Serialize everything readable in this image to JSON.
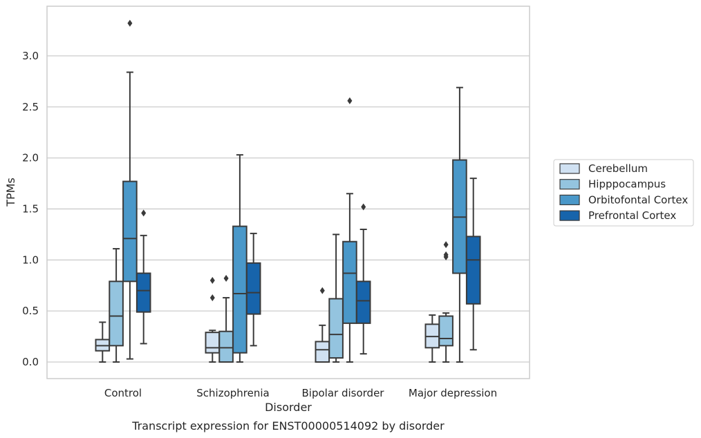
{
  "chart_data": {
    "type": "box",
    "title": "",
    "caption": "Transcript expression for ENST00000514092 by disorder",
    "xlabel": "Disorder",
    "ylabel": "TPMs",
    "ylim": [
      -0.16,
      3.48
    ],
    "yticks": [
      "0.0",
      "0.5",
      "1.0",
      "1.5",
      "2.0",
      "2.5",
      "3.0"
    ],
    "grid": "horizontal",
    "legend_position": "right",
    "categories": [
      "Control",
      "Schizophrenia",
      "Bipolar disorder",
      "Major depression"
    ],
    "series": [
      {
        "name": "Cerebellum",
        "color": "#d0e1f2",
        "boxes": [
          {
            "min": 0.0,
            "q1": 0.11,
            "median": 0.16,
            "q3": 0.22,
            "max": 0.39,
            "outliers": []
          },
          {
            "min": 0.0,
            "q1": 0.09,
            "median": 0.14,
            "q3": 0.29,
            "max": 0.31,
            "outliers": [
              0.63,
              0.8
            ]
          },
          {
            "min": 0.0,
            "q1": 0.0,
            "median": 0.12,
            "q3": 0.2,
            "max": 0.36,
            "outliers": [
              0.7
            ]
          },
          {
            "min": 0.0,
            "q1": 0.14,
            "median": 0.25,
            "q3": 0.37,
            "max": 0.46,
            "outliers": []
          }
        ]
      },
      {
        "name": "Hipppocampus",
        "color": "#94c4df",
        "boxes": [
          {
            "min": 0.0,
            "q1": 0.16,
            "median": 0.45,
            "q3": 0.79,
            "max": 1.11,
            "outliers": []
          },
          {
            "min": 0.0,
            "q1": 0.0,
            "median": 0.14,
            "q3": 0.3,
            "max": 0.63,
            "outliers": [
              0.82
            ]
          },
          {
            "min": 0.0,
            "q1": 0.04,
            "median": 0.27,
            "q3": 0.62,
            "max": 1.25,
            "outliers": []
          },
          {
            "min": 0.0,
            "q1": 0.16,
            "median": 0.23,
            "q3": 0.45,
            "max": 0.48,
            "outliers": [
              1.03,
              1.05,
              1.15
            ]
          }
        ]
      },
      {
        "name": "Orbitofontal Cortex",
        "color": "#4a98c9",
        "boxes": [
          {
            "min": 0.03,
            "q1": 0.79,
            "median": 1.21,
            "q3": 1.77,
            "max": 2.84,
            "outliers": [
              3.32
            ]
          },
          {
            "min": 0.0,
            "q1": 0.09,
            "median": 0.67,
            "q3": 1.33,
            "max": 2.03,
            "outliers": []
          },
          {
            "min": 0.0,
            "q1": 0.38,
            "median": 0.87,
            "q3": 1.18,
            "max": 1.65,
            "outliers": [
              2.56
            ]
          },
          {
            "min": 0.0,
            "q1": 0.87,
            "median": 1.42,
            "q3": 1.98,
            "max": 2.69,
            "outliers": []
          }
        ]
      },
      {
        "name": "Prefrontal Cortex",
        "color": "#1764ab",
        "boxes": [
          {
            "min": 0.18,
            "q1": 0.49,
            "median": 0.7,
            "q3": 0.87,
            "max": 1.24,
            "outliers": [
              1.46
            ]
          },
          {
            "min": 0.16,
            "q1": 0.47,
            "median": 0.68,
            "q3": 0.97,
            "max": 1.26,
            "outliers": []
          },
          {
            "min": 0.08,
            "q1": 0.38,
            "median": 0.6,
            "q3": 0.79,
            "max": 1.3,
            "outliers": [
              1.52
            ]
          },
          {
            "min": 0.12,
            "q1": 0.57,
            "median": 1.0,
            "q3": 1.23,
            "max": 1.8,
            "outliers": []
          }
        ]
      }
    ]
  }
}
